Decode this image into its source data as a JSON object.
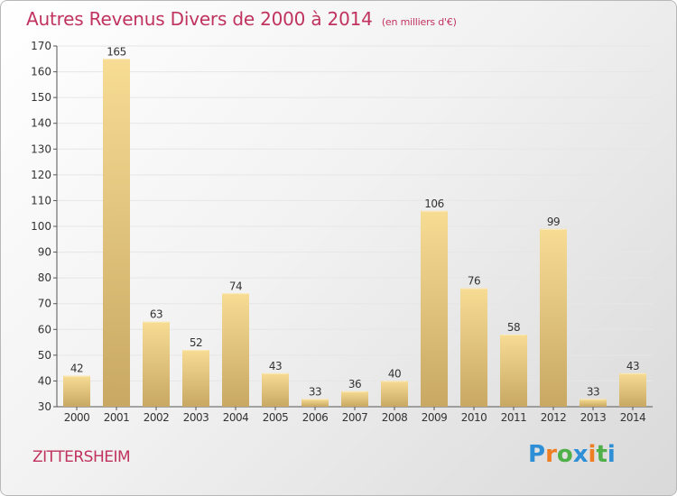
{
  "title": "Autres Revenus Divers de 2000 à 2014",
  "subtitle": "(en milliers d'€)",
  "commune": "ZITTERSHEIM",
  "logo": {
    "letters": [
      "P",
      "r",
      "o",
      "x",
      "i",
      "t",
      "i"
    ],
    "colors": [
      "#2e8fd6",
      "#ef7d22",
      "#4fb04a",
      "#2e8fd6",
      "#ef7d22",
      "#4fb04a",
      "#2e8fd6"
    ]
  },
  "colors": {
    "title": "#c0335f",
    "bar_light": "#f7dc94",
    "bar_dark": "#c8a862",
    "label": "#333333"
  },
  "chart_data": {
    "type": "bar",
    "title": "Autres Revenus Divers de 2000 à 2014",
    "subtitle": "(en milliers d'€)",
    "categories": [
      "2000",
      "2001",
      "2002",
      "2003",
      "2004",
      "2005",
      "2006",
      "2007",
      "2008",
      "2009",
      "2010",
      "2011",
      "2012",
      "2013",
      "2014"
    ],
    "values": [
      42,
      165,
      63,
      52,
      74,
      43,
      33,
      36,
      40,
      106,
      76,
      58,
      99,
      33,
      43
    ],
    "ylim": [
      30,
      170
    ],
    "yticks": [
      30,
      40,
      50,
      60,
      70,
      80,
      90,
      100,
      110,
      120,
      130,
      140,
      150,
      160,
      170
    ],
    "grid": true,
    "legend": "none"
  }
}
